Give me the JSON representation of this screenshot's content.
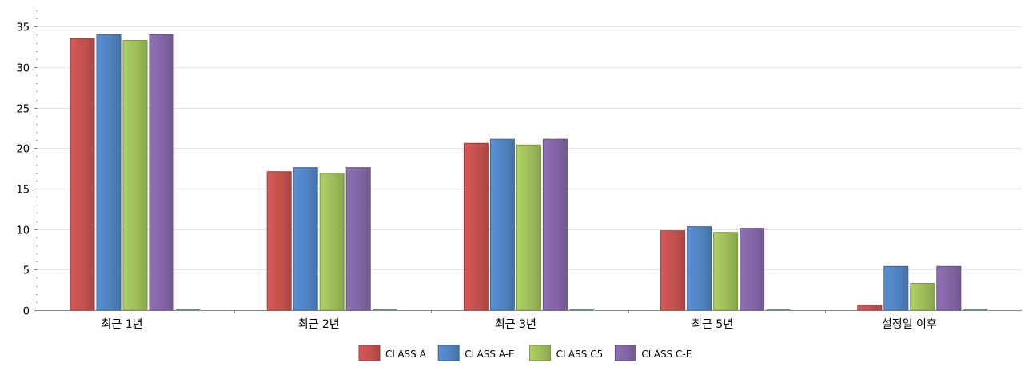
{
  "chart_data": {
    "type": "bar",
    "categories": [
      "최근 1년",
      "최근 2년",
      "최근 3년",
      "최근 5년",
      "설정일 이후"
    ],
    "series": [
      {
        "name": "CLASS A",
        "color": "#c0504d",
        "values": [
          33.5,
          17.1,
          20.6,
          9.8,
          0.6
        ]
      },
      {
        "name": "CLASS A-E",
        "color": "#4f81bd",
        "values": [
          34.0,
          17.6,
          21.1,
          10.3,
          5.4
        ]
      },
      {
        "name": "CLASS C5",
        "color": "#9bbb59",
        "values": [
          33.3,
          16.9,
          20.4,
          9.6,
          3.3
        ]
      },
      {
        "name": "CLASS C-E",
        "color": "#8064a2",
        "values": [
          34.0,
          17.6,
          21.1,
          10.1,
          5.4
        ]
      }
    ],
    "y_ticks": [
      "0",
      "5",
      "10",
      "15",
      "20",
      "25",
      "30",
      "35"
    ],
    "ylim": [
      0,
      37.5
    ],
    "grid": true,
    "legend_position": "bottom-center",
    "title": "",
    "xlabel": "",
    "ylabel": ""
  }
}
